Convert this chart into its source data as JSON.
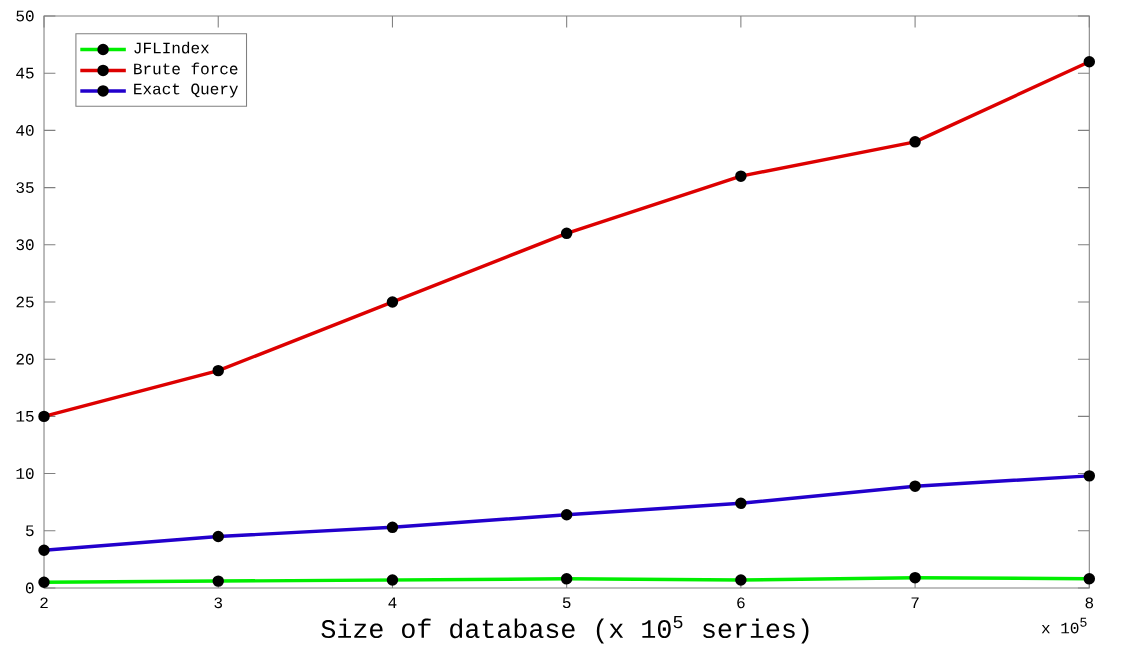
{
  "chart_data": {
    "type": "line",
    "xlabel": "Size of database (x 10$^{5}$ series)",
    "annotations": [
      "x 10$^{5}$"
    ],
    "x": [
      2,
      3,
      4,
      5,
      6,
      7,
      8
    ],
    "xlim": [
      2,
      8
    ],
    "xticks": [
      2,
      3,
      4,
      5,
      6,
      7,
      8
    ],
    "ylim": [
      0,
      50
    ],
    "yticks": [
      0,
      5,
      10,
      15,
      20,
      25,
      30,
      35,
      40,
      45,
      50
    ],
    "grid": false,
    "legend": "top left",
    "marker": "circle",
    "line_style": "solid",
    "series": [
      {
        "name": "JFLIndex",
        "color": "#00ee00",
        "values": [
          0.5,
          0.6,
          0.7,
          0.8,
          0.7,
          0.9,
          0.8
        ]
      },
      {
        "name": "Brute force",
        "color": "#dd0000",
        "values": [
          15,
          19,
          25,
          31,
          36,
          39,
          46
        ]
      },
      {
        "name": "Exact Query",
        "color": "#2200cc",
        "values": [
          3.3,
          4.5,
          5.3,
          6.4,
          7.4,
          8.9,
          9.8
        ]
      }
    ]
  }
}
